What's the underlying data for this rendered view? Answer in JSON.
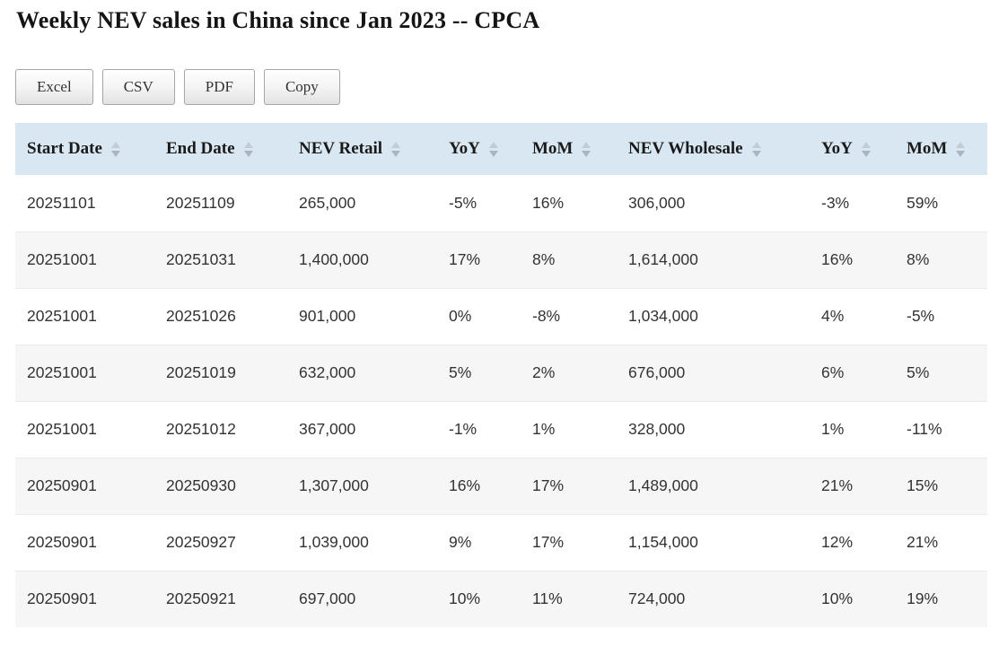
{
  "page": {
    "title": "Weekly NEV sales in China since Jan 2023 -- CPCA"
  },
  "toolbar": {
    "buttons": [
      {
        "label": "Excel"
      },
      {
        "label": "CSV"
      },
      {
        "label": "PDF"
      },
      {
        "label": "Copy"
      }
    ]
  },
  "table": {
    "columns": [
      {
        "label": "Start Date"
      },
      {
        "label": "End Date"
      },
      {
        "label": "NEV Retail"
      },
      {
        "label": "YoY"
      },
      {
        "label": "MoM"
      },
      {
        "label": "NEV Wholesale"
      },
      {
        "label": "YoY"
      },
      {
        "label": "MoM"
      }
    ],
    "rows": [
      [
        "20251101",
        "20251109",
        "265,000",
        "-5%",
        "16%",
        "306,000",
        "-3%",
        "59%"
      ],
      [
        "20251001",
        "20251031",
        "1,400,000",
        "17%",
        "8%",
        "1,614,000",
        "16%",
        "8%"
      ],
      [
        "20251001",
        "20251026",
        "901,000",
        "0%",
        "-8%",
        "1,034,000",
        "4%",
        "-5%"
      ],
      [
        "20251001",
        "20251019",
        "632,000",
        "5%",
        "2%",
        "676,000",
        "6%",
        "5%"
      ],
      [
        "20251001",
        "20251012",
        "367,000",
        "-1%",
        "1%",
        "328,000",
        "1%",
        "-11%"
      ],
      [
        "20250901",
        "20250930",
        "1,307,000",
        "16%",
        "17%",
        "1,489,000",
        "21%",
        "15%"
      ],
      [
        "20250901",
        "20250927",
        "1,039,000",
        "9%",
        "17%",
        "1,154,000",
        "12%",
        "21%"
      ],
      [
        "20250901",
        "20250921",
        "697,000",
        "10%",
        "11%",
        "724,000",
        "10%",
        "19%"
      ]
    ]
  },
  "colors": {
    "header_background": "#d8e7f1",
    "stripe_row": "#f6f6f6",
    "row_border": "#ebebeb",
    "body_text": "#333333",
    "header_text": "#1a1a1a",
    "sort_arrow_up": "#c1ccd5",
    "sort_arrow_down": "#a7b6c2"
  }
}
